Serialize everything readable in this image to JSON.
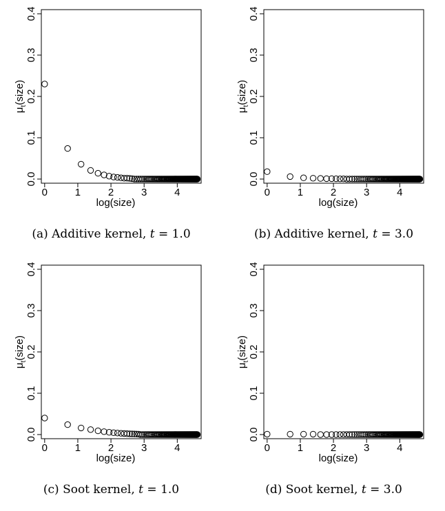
{
  "chart_data": [
    {
      "type": "scatter",
      "caption": {
        "prefix": "(a) Additive kernel, ",
        "var": "t",
        "suffix": " = 1.0"
      },
      "xlabel": "log(size)",
      "ylabel_main": "μ",
      "ylabel_sub": "t",
      "ylabel_rest": "(size)",
      "xlim": [
        0,
        4.61
      ],
      "ylim": [
        0,
        0.4
      ],
      "x_ticks": [
        "0",
        "1",
        "2",
        "3",
        "4"
      ],
      "y_ticks": [
        "0.0",
        "0.1",
        "0.2",
        "0.3",
        "0.4"
      ],
      "values": [
        0.23,
        0.074,
        0.036,
        0.021,
        0.014,
        0.01,
        0.007,
        0.005,
        0.004,
        0.003,
        0.002,
        0.002,
        0.0015,
        0.001
      ]
    },
    {
      "type": "scatter",
      "caption": {
        "prefix": "(b) Additive kernel, ",
        "var": "t",
        "suffix": " = 3.0"
      },
      "xlabel": "log(size)",
      "ylabel_main": "μ",
      "ylabel_sub": "t",
      "ylabel_rest": "(size)",
      "xlim": [
        0,
        4.61
      ],
      "ylim": [
        0,
        0.4
      ],
      "x_ticks": [
        "0",
        "1",
        "2",
        "3",
        "4"
      ],
      "y_ticks": [
        "0.0",
        "0.1",
        "0.2",
        "0.3",
        "0.4"
      ],
      "values": [
        0.018,
        0.006,
        0.003,
        0.002,
        0.0015,
        0.001,
        0.001,
        0.0008,
        0.0006,
        0.0005
      ]
    },
    {
      "type": "scatter",
      "caption": {
        "prefix": "(c) Soot kernel, ",
        "var": "t",
        "suffix": " = 1.0"
      },
      "xlabel": "log(size)",
      "ylabel_main": "μ",
      "ylabel_sub": "t",
      "ylabel_rest": "(size)",
      "xlim": [
        0,
        4.61
      ],
      "ylim": [
        0,
        0.4
      ],
      "x_ticks": [
        "0",
        "1",
        "2",
        "3",
        "4"
      ],
      "y_ticks": [
        "0.0",
        "0.1",
        "0.2",
        "0.3",
        "0.4"
      ],
      "values": [
        0.04,
        0.024,
        0.016,
        0.012,
        0.009,
        0.007,
        0.0055,
        0.0045,
        0.0037,
        0.003,
        0.0025,
        0.0021,
        0.0018,
        0.0015,
        0.0013,
        0.0011,
        0.001
      ]
    },
    {
      "type": "scatter",
      "caption": {
        "prefix": "(d) Soot kernel, ",
        "var": "t",
        "suffix": " = 3.0"
      },
      "xlabel": "log(size)",
      "ylabel_main": "μ",
      "ylabel_sub": "t",
      "ylabel_rest": "(size)",
      "xlim": [
        0,
        4.61
      ],
      "ylim": [
        0,
        0.4
      ],
      "x_ticks": [
        "0",
        "1",
        "2",
        "3",
        "4"
      ],
      "y_ticks": [
        "0.0",
        "0.1",
        "0.2",
        "0.3",
        "0.4"
      ],
      "values": [
        0.001,
        0.001,
        0.001,
        0.001
      ]
    }
  ]
}
